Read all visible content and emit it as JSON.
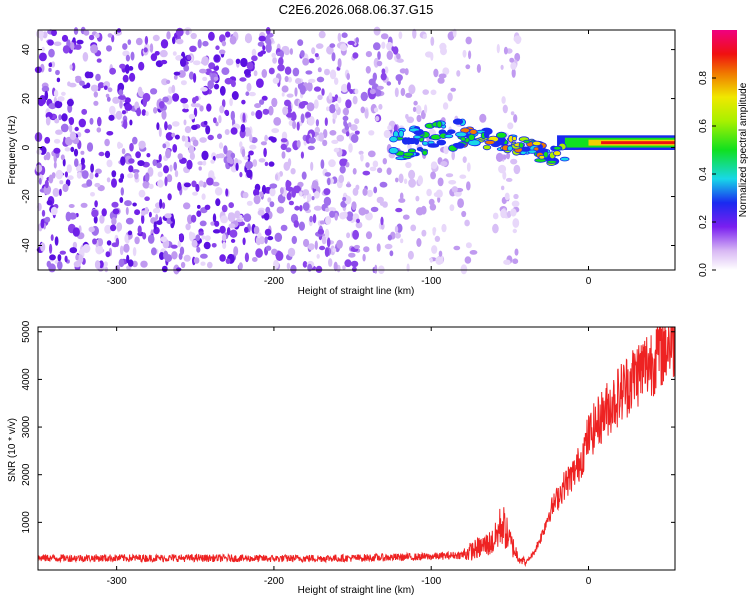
{
  "title": "C2E6.2026.068.06.37.G15",
  "chart_data": [
    {
      "type": "heatmap",
      "name": "spectrogram",
      "xlabel": "Height of straight line (km)",
      "ylabel": "Frequency (Hz)",
      "xlim": [
        -350,
        55
      ],
      "ylim": [
        -50,
        48
      ],
      "x_ticks": [
        -300,
        -200,
        -100,
        0
      ],
      "y_ticks": [
        -40,
        -20,
        0,
        20,
        40
      ],
      "signal_track": {
        "description_x": [
          -130,
          -110,
          -90,
          -70,
          -55,
          -40,
          -25,
          -10,
          0,
          10,
          30,
          55
        ],
        "frequency_hz": [
          -1,
          3,
          5,
          4,
          2,
          0,
          -3,
          -2,
          0,
          2,
          2,
          2
        ],
        "peak_amplitude": [
          0.3,
          0.4,
          0.45,
          0.5,
          0.55,
          0.65,
          0.75,
          0.85,
          0.9,
          0.95,
          1.0,
          1.0
        ]
      },
      "colorbar": {
        "label": "Normalized spectral amplitude",
        "range": [
          0,
          1
        ],
        "ticks": [
          "0.0",
          "0.2",
          "0.4",
          "0.6",
          "0.8"
        ]
      }
    },
    {
      "type": "line",
      "name": "snr",
      "xlabel": "Height of straight line (km)",
      "ylabel": "SNR (10 * v/v)",
      "xlim": [
        -350,
        55
      ],
      "ylim": [
        0,
        5100
      ],
      "x_ticks": [
        -300,
        -200,
        -100,
        0
      ],
      "y_ticks": [
        1000,
        2000,
        3000,
        4000,
        5000
      ],
      "color": "#ee2222",
      "x": [
        -350,
        -300,
        -250,
        -200,
        -150,
        -100,
        -80,
        -60,
        -55,
        -50,
        -45,
        -40,
        -35,
        -30,
        -25,
        -20,
        -15,
        -10,
        -5,
        0,
        10,
        20,
        30,
        40,
        50,
        55
      ],
      "y": [
        250,
        250,
        250,
        240,
        250,
        280,
        320,
        600,
        1000,
        600,
        300,
        150,
        350,
        700,
        1200,
        1500,
        1800,
        2000,
        2300,
        2800,
        3300,
        3700,
        4100,
        4400,
        4750,
        4850
      ]
    }
  ]
}
